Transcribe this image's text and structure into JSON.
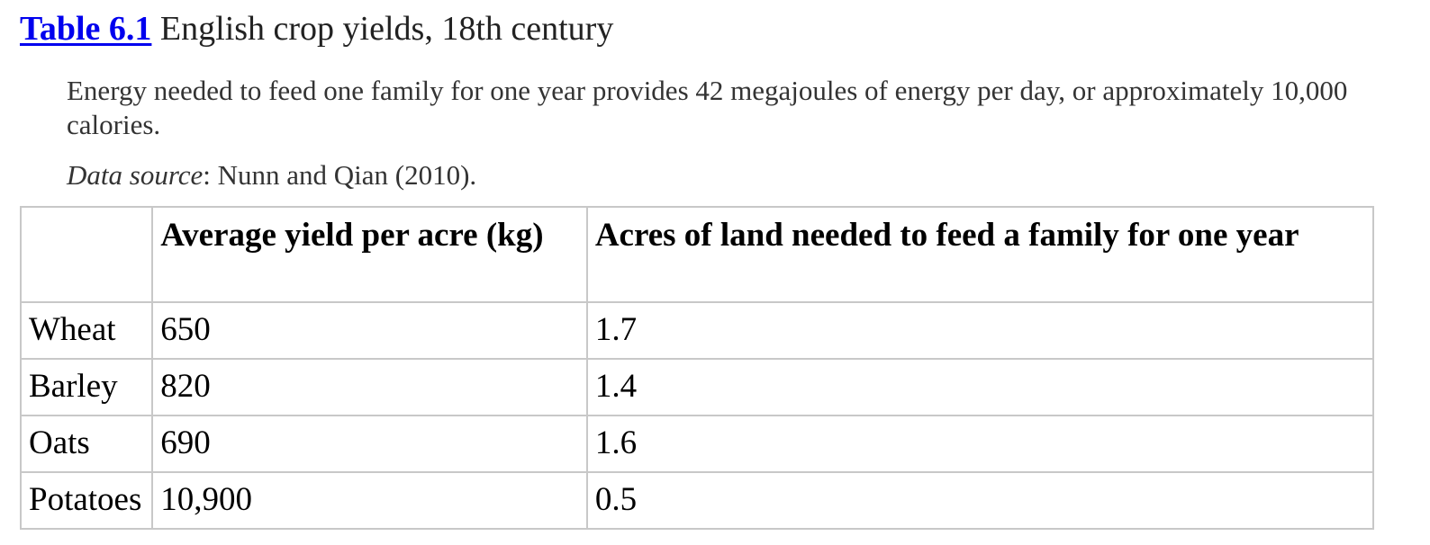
{
  "caption": {
    "label": "Table 6.1",
    "title": " English crop yields, 18th century"
  },
  "notes": {
    "energy": "Energy needed to feed one family for one year provides 42 megajoules of energy per day, or approximately 10,000 calories.",
    "source_label": "Data source",
    "source_text": ": Nunn and Qian (2010)."
  },
  "table": {
    "headers": [
      "",
      "Average yield per acre (kg)",
      "Acres of land needed to feed a family for one year"
    ],
    "rows": [
      {
        "crop": "Wheat",
        "yield": "650",
        "acres": "1.7"
      },
      {
        "crop": "Barley",
        "yield": "820",
        "acres": "1.4"
      },
      {
        "crop": "Oats",
        "yield": "690",
        "acres": "1.6"
      },
      {
        "crop": "Potatoes",
        "yield": "10,900",
        "acres": "0.5"
      }
    ]
  }
}
